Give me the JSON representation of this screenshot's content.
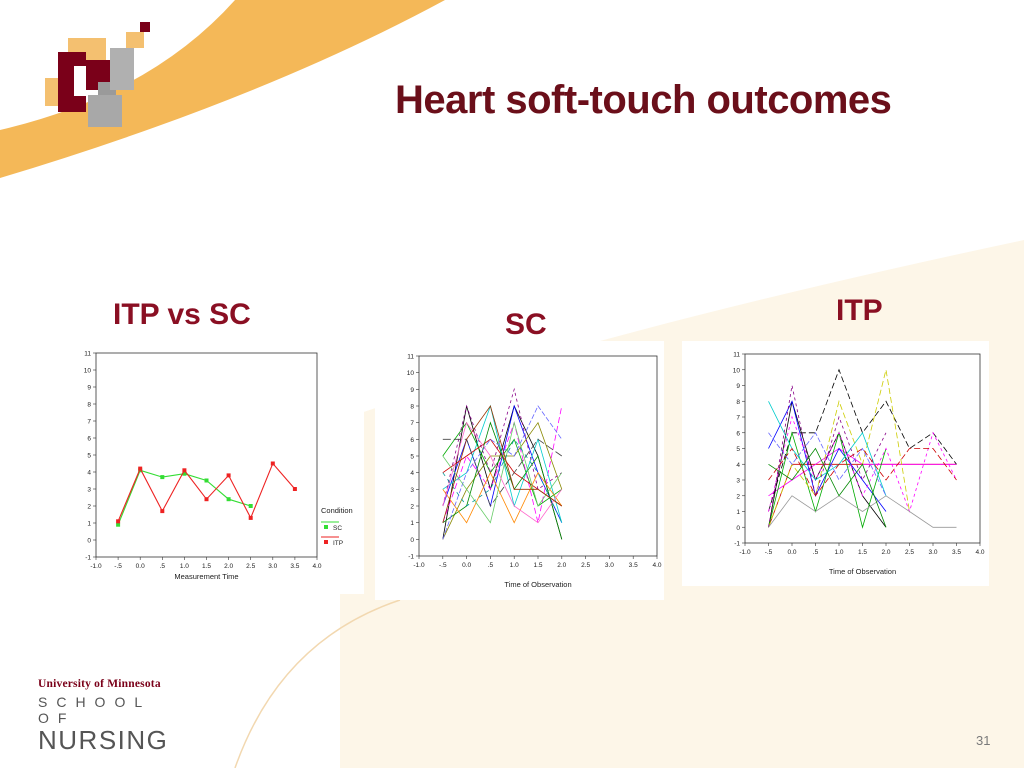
{
  "title": "Heart soft-touch outcomes",
  "labels": {
    "left": "ITP vs SC",
    "middle": "SC",
    "right": "ITP"
  },
  "footer": {
    "university": "University of Minnesota",
    "school": "SCHOOL OF",
    "nursing": "NURSING"
  },
  "page_number": "31",
  "colors": {
    "title": "#6b0f1a",
    "label": "#8a0f23",
    "band": "#f4b858",
    "cream": "#fdf6e8",
    "sc": "#33dd33",
    "itp": "#ee2222"
  },
  "chart_data": [
    {
      "type": "line",
      "x_tick_labels": [
        "-1.0",
        "-.5",
        "0.0",
        ".5",
        "1.0",
        "1.5",
        "2.0",
        "2.5",
        "3.0",
        "3.5",
        "4.0"
      ],
      "y_tick_labels": [
        "11",
        "10",
        "9",
        "8",
        "7",
        "6",
        "5",
        "4",
        "3",
        "2",
        "1",
        "0",
        "-1"
      ],
      "xlim": [
        -1,
        4
      ],
      "ylim": [
        -1,
        11
      ],
      "xlabel": "Measurement Time",
      "ylabel": "",
      "legend_title": "Condition",
      "legend_position": "right",
      "series": [
        {
          "name": "SC",
          "color": "#33dd33",
          "x": [
            -0.5,
            0,
            0.5,
            1,
            1.5,
            2,
            2.5
          ],
          "values": [
            0.9,
            4.1,
            3.7,
            3.9,
            3.5,
            2.4,
            2.0
          ]
        },
        {
          "name": "ITP",
          "color": "#ee2222",
          "x": [
            -0.5,
            0,
            0.5,
            1,
            1.5,
            2,
            2.5,
            3,
            3.5
          ],
          "values": [
            1.1,
            4.2,
            1.7,
            4.1,
            2.4,
            3.8,
            1.3,
            4.5,
            3.0
          ]
        }
      ]
    },
    {
      "type": "line",
      "x_tick_labels": [
        "-1.0",
        "-.5",
        "0.0",
        ".5",
        "1.0",
        "1.5",
        "2.0",
        "2.5",
        "3.0",
        "3.5",
        "4.0"
      ],
      "y_tick_labels": [
        "11",
        "10",
        "9",
        "8",
        "7",
        "6",
        "5",
        "4",
        "3",
        "2",
        "1",
        "0",
        "-1"
      ],
      "xlim": [
        -1,
        4
      ],
      "ylim": [
        -1,
        11
      ],
      "xlabel": "Time of Observation",
      "ylabel": "",
      "grid": false,
      "series": [
        {
          "color": "#000000",
          "dash": "",
          "x": [
            -0.5,
            0,
            0.5,
            1,
            1.5,
            2
          ],
          "values": [
            0,
            8,
            3,
            8,
            5,
            0
          ]
        },
        {
          "color": "#0000ff",
          "dash": "",
          "x": [
            -0.5,
            0,
            0.5,
            1,
            1.5,
            2
          ],
          "values": [
            2,
            6,
            2,
            8,
            4,
            1
          ]
        },
        {
          "color": "#00aa00",
          "dash": "",
          "x": [
            -0.5,
            0,
            0.5,
            1,
            1.5,
            2
          ],
          "values": [
            5,
            7,
            4,
            6,
            2,
            3
          ]
        },
        {
          "color": "#ff00ff",
          "dash": "6,3",
          "x": [
            -0.5,
            0,
            0.5,
            1,
            1.5,
            2
          ],
          "values": [
            1,
            5,
            3,
            7,
            1,
            8
          ]
        },
        {
          "color": "#00cccc",
          "dash": "",
          "x": [
            -0.5,
            0,
            0.5,
            1,
            1.5,
            2
          ],
          "values": [
            3,
            4,
            8,
            2,
            6,
            1
          ]
        },
        {
          "color": "#cc0000",
          "dash": "",
          "x": [
            -0.5,
            0,
            0.5,
            1,
            1.5,
            2
          ],
          "values": [
            4,
            5,
            6,
            4,
            3,
            2
          ]
        },
        {
          "color": "#888800",
          "dash": "",
          "x": [
            -0.5,
            0,
            0.5,
            1,
            1.5,
            2
          ],
          "values": [
            0,
            3,
            5,
            5,
            7,
            3
          ]
        },
        {
          "color": "#880088",
          "dash": "3,3",
          "x": [
            -0.5,
            0,
            0.5,
            1,
            1.5,
            2
          ],
          "values": [
            2,
            8,
            4,
            9,
            3,
            4
          ]
        },
        {
          "color": "#008800",
          "dash": "",
          "x": [
            -0.5,
            0,
            0.5,
            1,
            1.5,
            2
          ],
          "values": [
            1,
            2,
            7,
            3,
            5,
            0
          ]
        },
        {
          "color": "#444444",
          "dash": "8,3",
          "x": [
            -0.5,
            0,
            0.5,
            1,
            1.5,
            2
          ],
          "values": [
            6,
            6,
            2,
            4,
            6,
            5
          ]
        },
        {
          "color": "#ff8800",
          "dash": "",
          "x": [
            -0.5,
            0,
            0.5,
            1,
            1.5,
            2
          ],
          "values": [
            3,
            1,
            4,
            1,
            4,
            2
          ]
        },
        {
          "color": "#6666ff",
          "dash": "5,2",
          "x": [
            -0.5,
            0,
            0.5,
            1,
            1.5,
            2
          ],
          "values": [
            0,
            4,
            6,
            5,
            8,
            6
          ]
        },
        {
          "color": "#66cc66",
          "dash": "",
          "x": [
            -0.5,
            0,
            0.5,
            1,
            1.5,
            2
          ],
          "values": [
            5,
            3,
            1,
            7,
            2,
            4
          ]
        },
        {
          "color": "#ff66cc",
          "dash": "",
          "x": [
            -0.5,
            0,
            0.5,
            1,
            1.5,
            2
          ],
          "values": [
            2,
            7,
            5,
            2,
            1,
            3
          ]
        },
        {
          "color": "#009999",
          "dash": "4,4",
          "x": [
            -0.5,
            0,
            0.5,
            1,
            1.5,
            2
          ],
          "values": [
            4,
            2,
            3,
            6,
            4,
            1
          ]
        },
        {
          "color": "#993300",
          "dash": "",
          "x": [
            -0.5,
            0,
            0.5,
            1,
            1.5,
            2
          ],
          "values": [
            1,
            6,
            8,
            3,
            3,
            2
          ]
        }
      ]
    },
    {
      "type": "line",
      "x_tick_labels": [
        "-1.0",
        "-.5",
        "0.0",
        ".5",
        "1.0",
        "1.5",
        "2.0",
        "2.5",
        "3.0",
        "3.5",
        "4.0"
      ],
      "y_tick_labels": [
        "11",
        "10",
        "9",
        "8",
        "7",
        "6",
        "5",
        "4",
        "3",
        "2",
        "1",
        "0",
        "-1"
      ],
      "xlim": [
        -1,
        4
      ],
      "ylim": [
        -1,
        11
      ],
      "xlabel": "Time of Observation",
      "ylabel": "",
      "grid": false,
      "series": [
        {
          "color": "#cc0000",
          "dash": "",
          "x": [
            -0.5,
            0,
            0.5,
            1,
            1.5,
            2,
            2.5,
            3,
            3.5
          ],
          "values": [
            0,
            4,
            4,
            4,
            4,
            4,
            4,
            4,
            4
          ]
        },
        {
          "color": "#ff00ff",
          "dash": "",
          "x": [
            -0.5,
            0,
            0.5,
            1,
            1.5,
            2,
            2.5,
            3,
            3.5
          ],
          "values": [
            2,
            3,
            4,
            5,
            4,
            4,
            4,
            4,
            4
          ]
        },
        {
          "color": "#000000",
          "dash": "",
          "x": [
            -0.5,
            0,
            0.5,
            1,
            1.5,
            2
          ],
          "values": [
            0,
            8,
            3,
            6,
            2,
            0
          ]
        },
        {
          "color": "#000000",
          "dash": "6,3",
          "x": [
            -0.5,
            0,
            0.5,
            1,
            1.5,
            2,
            2.5,
            3,
            3.5
          ],
          "values": [
            1,
            6,
            6,
            10,
            6,
            8,
            5,
            6,
            4
          ]
        },
        {
          "color": "#0000ff",
          "dash": "",
          "x": [
            -0.5,
            0,
            0.5,
            1,
            1.5,
            2
          ],
          "values": [
            5,
            8,
            2,
            5,
            3,
            1
          ]
        },
        {
          "color": "#00aa00",
          "dash": "",
          "x": [
            -0.5,
            0,
            0.5,
            1,
            1.5,
            2
          ],
          "values": [
            0,
            6,
            1,
            6,
            0,
            5
          ]
        },
        {
          "color": "#cccc00",
          "dash": "6,3",
          "x": [
            -0.5,
            0,
            0.5,
            1,
            1.5,
            2,
            2.5
          ],
          "values": [
            0,
            4,
            2,
            8,
            4,
            10,
            1
          ]
        },
        {
          "color": "#ff00ff",
          "dash": "3,3",
          "x": [
            -0.5,
            0,
            0.5,
            1,
            1.5,
            2,
            2.5,
            3,
            3.5
          ],
          "values": [
            1,
            7,
            3,
            6,
            2,
            5,
            1,
            6,
            3
          ]
        },
        {
          "color": "#00cccc",
          "dash": "",
          "x": [
            -0.5,
            0,
            0.5,
            1,
            1.5,
            2
          ],
          "values": [
            8,
            5,
            3,
            4,
            6,
            2
          ]
        },
        {
          "color": "#880088",
          "dash": "3,3",
          "x": [
            -0.5,
            0,
            0.5,
            1,
            1.5,
            2
          ],
          "values": [
            0,
            9,
            2,
            7,
            3,
            6
          ]
        },
        {
          "color": "#999999",
          "dash": "",
          "x": [
            -0.5,
            0,
            0.5,
            1,
            1.5,
            2,
            2.5,
            3,
            3.5
          ],
          "values": [
            0,
            2,
            1,
            2,
            1,
            2,
            1,
            0,
            0
          ]
        },
        {
          "color": "#cc0000",
          "dash": "6,3",
          "x": [
            -0.5,
            0,
            0.5,
            1,
            1.5,
            2,
            2.5,
            3,
            3.5
          ],
          "values": [
            3,
            5,
            2,
            4,
            5,
            3,
            5,
            5,
            3
          ]
        },
        {
          "color": "#008800",
          "dash": "",
          "x": [
            -0.5,
            0,
            0.5,
            1,
            1.5,
            2
          ],
          "values": [
            4,
            3,
            5,
            2,
            4,
            0
          ]
        },
        {
          "color": "#6666ff",
          "dash": "5,2",
          "x": [
            -0.5,
            0,
            0.5,
            1,
            1.5,
            2
          ],
          "values": [
            6,
            4,
            6,
            3,
            5,
            2
          ]
        }
      ]
    }
  ]
}
